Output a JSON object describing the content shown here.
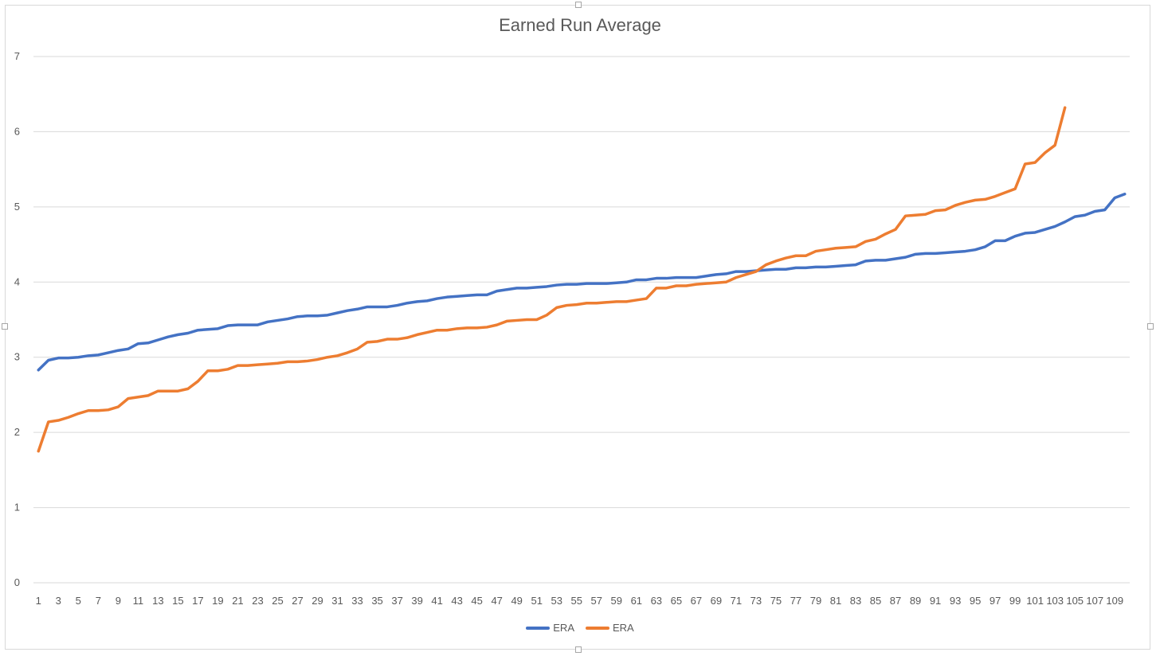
{
  "chart_data": {
    "type": "line",
    "title": "Earned Run Average",
    "xlabel": "",
    "ylabel": "",
    "ylim": [
      0,
      7
    ],
    "yticks": [
      0,
      1,
      2,
      3,
      4,
      5,
      6,
      7
    ],
    "grid": true,
    "legend_position": "bottom",
    "x_count": 110,
    "x_tick_labels": [
      "1",
      "3",
      "5",
      "7",
      "9",
      "11",
      "13",
      "15",
      "17",
      "19",
      "21",
      "23",
      "25",
      "27",
      "29",
      "31",
      "33",
      "35",
      "37",
      "39",
      "41",
      "43",
      "45",
      "47",
      "49",
      "51",
      "53",
      "55",
      "57",
      "59",
      "61",
      "63",
      "65",
      "67",
      "69",
      "71",
      "73",
      "75",
      "77",
      "79",
      "81",
      "83",
      "85",
      "87",
      "89",
      "91",
      "93",
      "95",
      "97",
      "99",
      "101",
      "103",
      "105",
      "107",
      "109"
    ],
    "series": [
      {
        "name": "ERA",
        "color": "#4472c4",
        "values": [
          2.83,
          2.96,
          2.99,
          2.99,
          3.0,
          3.02,
          3.03,
          3.06,
          3.09,
          3.11,
          3.18,
          3.19,
          3.23,
          3.27,
          3.3,
          3.32,
          3.36,
          3.37,
          3.38,
          3.42,
          3.43,
          3.43,
          3.43,
          3.47,
          3.49,
          3.51,
          3.54,
          3.55,
          3.55,
          3.56,
          3.59,
          3.62,
          3.64,
          3.67,
          3.67,
          3.67,
          3.69,
          3.72,
          3.74,
          3.75,
          3.78,
          3.8,
          3.81,
          3.82,
          3.83,
          3.83,
          3.88,
          3.9,
          3.92,
          3.92,
          3.93,
          3.94,
          3.96,
          3.97,
          3.97,
          3.98,
          3.98,
          3.98,
          3.99,
          4.0,
          4.03,
          4.03,
          4.05,
          4.05,
          4.06,
          4.06,
          4.06,
          4.08,
          4.1,
          4.11,
          4.14,
          4.14,
          4.15,
          4.16,
          4.17,
          4.17,
          4.19,
          4.19,
          4.2,
          4.2,
          4.21,
          4.22,
          4.23,
          4.28,
          4.29,
          4.29,
          4.31,
          4.33,
          4.37,
          4.38,
          4.38,
          4.39,
          4.4,
          4.41,
          4.43,
          4.47,
          4.55,
          4.55,
          4.61,
          4.65,
          4.66,
          4.7,
          4.74,
          4.8,
          4.87,
          4.89,
          4.94,
          4.96,
          5.12,
          5.17
        ]
      },
      {
        "name": "ERA",
        "color": "#ed7d31",
        "values": [
          1.75,
          2.14,
          2.16,
          2.2,
          2.25,
          2.29,
          2.29,
          2.3,
          2.34,
          2.45,
          2.47,
          2.49,
          2.55,
          2.55,
          2.55,
          2.58,
          2.68,
          2.82,
          2.82,
          2.84,
          2.89,
          2.89,
          2.9,
          2.91,
          2.92,
          2.94,
          2.94,
          2.95,
          2.97,
          3.0,
          3.02,
          3.06,
          3.11,
          3.2,
          3.21,
          3.24,
          3.24,
          3.26,
          3.3,
          3.33,
          3.36,
          3.36,
          3.38,
          3.39,
          3.39,
          3.4,
          3.43,
          3.48,
          3.49,
          3.5,
          3.5,
          3.56,
          3.66,
          3.69,
          3.7,
          3.72,
          3.72,
          3.73,
          3.74,
          3.74,
          3.76,
          3.78,
          3.92,
          3.92,
          3.95,
          3.95,
          3.97,
          3.98,
          3.99,
          4.0,
          4.06,
          4.1,
          4.14,
          4.23,
          4.28,
          4.32,
          4.35,
          4.35,
          4.41,
          4.43,
          4.45,
          4.46,
          4.47,
          4.54,
          4.57,
          4.64,
          4.7,
          4.88,
          4.89,
          4.9,
          4.95,
          4.96,
          5.02,
          5.06,
          5.09,
          5.1,
          5.14,
          5.19,
          5.24,
          5.57,
          5.59,
          5.72,
          5.82,
          6.32
        ]
      }
    ]
  }
}
